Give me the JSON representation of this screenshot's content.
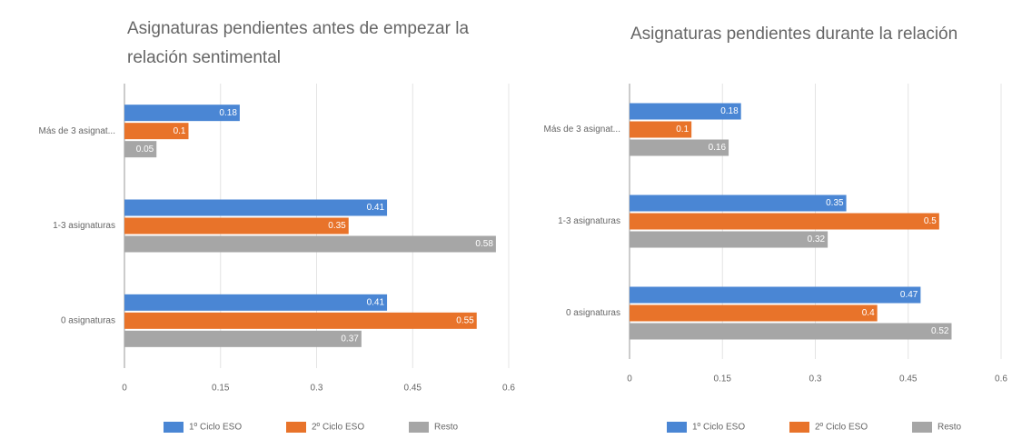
{
  "chart_data": [
    {
      "type": "bar",
      "orientation": "horizontal",
      "title": "Asignaturas pendientes antes de empezar la relación sentimental",
      "categories": [
        "Más de 3 asignat...",
        "1-3 asignaturas",
        "0 asignaturas"
      ],
      "series": [
        {
          "name": "1º Ciclo ESO",
          "color": "#4a86d4",
          "values": [
            0.18,
            0.41,
            0.41
          ]
        },
        {
          "name": "2º Ciclo ESO",
          "color": "#e8732a",
          "values": [
            0.1,
            0.35,
            0.55
          ]
        },
        {
          "name": "Resto",
          "color": "#a6a6a6",
          "values": [
            0.05,
            0.58,
            0.37
          ]
        }
      ],
      "xlim": [
        0,
        0.6
      ],
      "xticks": [
        0,
        0.15,
        0.3,
        0.45,
        0.6
      ],
      "grid": true,
      "legend": "bottom"
    },
    {
      "type": "bar",
      "orientation": "horizontal",
      "title": "Asignaturas pendientes durante la relación",
      "categories": [
        "Más de 3 asignat...",
        "1-3 asignaturas",
        "0 asignaturas"
      ],
      "series": [
        {
          "name": "1º Ciclo ESO",
          "color": "#4a86d4",
          "values": [
            0.18,
            0.35,
            0.47
          ]
        },
        {
          "name": "2º Ciclo ESO",
          "color": "#e8732a",
          "values": [
            0.1,
            0.5,
            0.4
          ]
        },
        {
          "name": "Resto",
          "color": "#a6a6a6",
          "values": [
            0.16,
            0.32,
            0.52
          ]
        }
      ],
      "xlim": [
        0,
        0.6
      ],
      "xticks": [
        0,
        0.15,
        0.3,
        0.45,
        0.6
      ],
      "grid": true,
      "legend": "bottom"
    }
  ]
}
